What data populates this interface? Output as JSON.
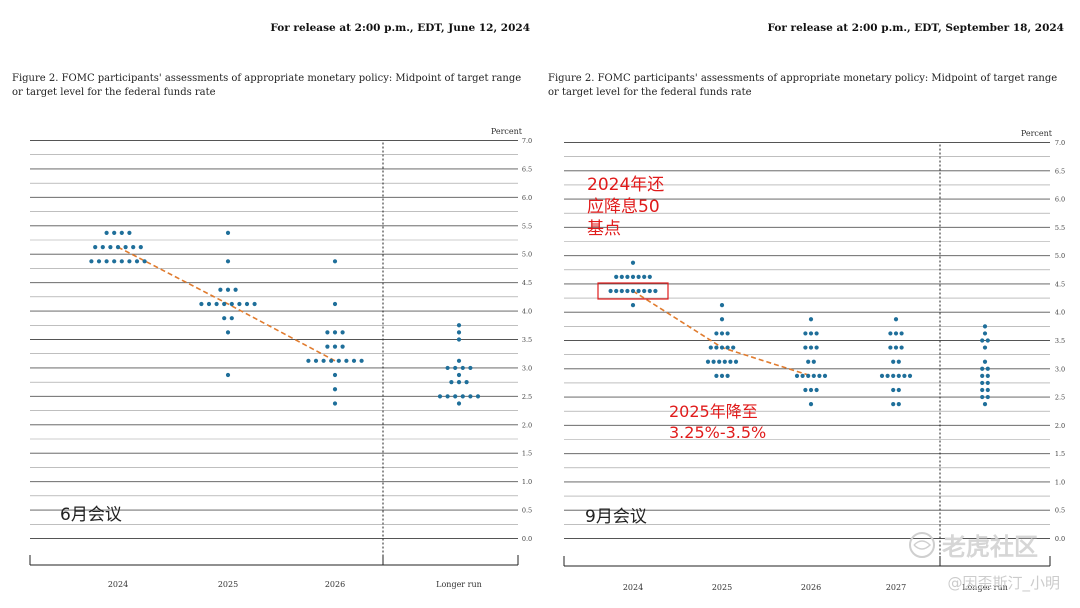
{
  "watermark": {
    "brand": "老虎社区",
    "author": "@因歪斯汀_小明"
  },
  "chart_data": [
    {
      "type": "scatter",
      "release": "For release at 2:00 p.m., EDT, June 12, 2024",
      "title": "Figure 2.  FOMC participants' assessments of appropriate monetary policy: Midpoint of target range",
      "title_line2": "or target level for the federal funds rate",
      "ylabel": "Percent",
      "ylim": [
        0,
        7.0
      ],
      "y_ticks": [
        "0.0",
        "0.5",
        "1.0",
        "1.5",
        "2.0",
        "2.5",
        "3.0",
        "3.5",
        "4.0",
        "4.5",
        "5.0",
        "5.5",
        "6.0",
        "6.5",
        "7.0"
      ],
      "categories": [
        "2024",
        "2025",
        "2026",
        "Longer run"
      ],
      "dots": [
        {
          "category": "2024",
          "rows": [
            {
              "y": 5.375,
              "count": 4
            },
            {
              "y": 5.125,
              "count": 7
            },
            {
              "y": 4.875,
              "count": 8
            }
          ]
        },
        {
          "category": "2025",
          "rows": [
            {
              "y": 5.375,
              "count": 1
            },
            {
              "y": 4.875,
              "count": 1
            },
            {
              "y": 4.375,
              "count": 3
            },
            {
              "y": 4.125,
              "count": 8
            },
            {
              "y": 3.875,
              "count": 2
            },
            {
              "y": 3.625,
              "count": 1
            },
            {
              "y": 2.875,
              "count": 1
            }
          ]
        },
        {
          "category": "2026",
          "rows": [
            {
              "y": 4.875,
              "count": 1
            },
            {
              "y": 4.125,
              "count": 1
            },
            {
              "y": 3.625,
              "count": 3
            },
            {
              "y": 3.375,
              "count": 3
            },
            {
              "y": 3.125,
              "count": 8
            },
            {
              "y": 2.875,
              "count": 1
            },
            {
              "y": 2.625,
              "count": 1
            },
            {
              "y": 2.375,
              "count": 1
            }
          ]
        },
        {
          "category": "Longer run",
          "rows": [
            {
              "y": 3.75,
              "count": 1
            },
            {
              "y": 3.625,
              "count": 1
            },
            {
              "y": 3.5,
              "count": 1
            },
            {
              "y": 3.125,
              "count": 1
            },
            {
              "y": 3.0,
              "count": 4
            },
            {
              "y": 2.875,
              "count": 1
            },
            {
              "y": 2.75,
              "count": 3
            },
            {
              "y": 2.5,
              "count": 6
            },
            {
              "y": 2.375,
              "count": 1
            }
          ]
        }
      ],
      "median_line": [
        {
          "category": "2024",
          "y": 5.125
        },
        {
          "category": "2025",
          "y": 4.125
        },
        {
          "category": "2026",
          "y": 3.125
        }
      ],
      "annotations": [
        {
          "text": "6月会议",
          "anchor": "bottom-left"
        }
      ]
    },
    {
      "type": "scatter",
      "release": "For release at 2:00 p.m., EDT, September 18, 2024",
      "title": "Figure 2.  FOMC participants' assessments of appropriate monetary policy: Midpoint of target range",
      "title_line2": "or target level for the federal funds rate",
      "ylabel": "Percent",
      "ylim": [
        0,
        7.0
      ],
      "y_ticks": [
        "0.0",
        "0.5",
        "1.0",
        "1.5",
        "2.0",
        "2.5",
        "3.0",
        "3.5",
        "4.0",
        "4.5",
        "5.0",
        "5.5",
        "6.0",
        "6.5",
        "7.0"
      ],
      "categories": [
        "2024",
        "2025",
        "2026",
        "2027",
        "Longer run"
      ],
      "dots": [
        {
          "category": "2024",
          "rows": [
            {
              "y": 4.875,
              "count": 1
            },
            {
              "y": 4.625,
              "count": 7
            },
            {
              "y": 4.375,
              "count": 9
            },
            {
              "y": 4.125,
              "count": 1
            }
          ]
        },
        {
          "category": "2025",
          "rows": [
            {
              "y": 4.125,
              "count": 1
            },
            {
              "y": 3.875,
              "count": 1
            },
            {
              "y": 3.625,
              "count": 3
            },
            {
              "y": 3.375,
              "count": 5
            },
            {
              "y": 3.125,
              "count": 6
            },
            {
              "y": 2.875,
              "count": 3
            }
          ]
        },
        {
          "category": "2026",
          "rows": [
            {
              "y": 3.875,
              "count": 1
            },
            {
              "y": 3.625,
              "count": 3
            },
            {
              "y": 3.375,
              "count": 3
            },
            {
              "y": 3.125,
              "count": 2
            },
            {
              "y": 2.875,
              "count": 6
            },
            {
              "y": 2.625,
              "count": 3
            },
            {
              "y": 2.375,
              "count": 1
            }
          ]
        },
        {
          "category": "2027",
          "rows": [
            {
              "y": 3.875,
              "count": 1
            },
            {
              "y": 3.625,
              "count": 3
            },
            {
              "y": 3.375,
              "count": 3
            },
            {
              "y": 3.125,
              "count": 2
            },
            {
              "y": 2.875,
              "count": 6
            },
            {
              "y": 2.625,
              "count": 2
            },
            {
              "y": 2.375,
              "count": 2
            }
          ]
        },
        {
          "category": "Longer run",
          "rows": [
            {
              "y": 3.75,
              "count": 1
            },
            {
              "y": 3.625,
              "count": 1
            },
            {
              "y": 3.5,
              "count": 2
            },
            {
              "y": 3.375,
              "count": 1
            },
            {
              "y": 3.125,
              "count": 1
            },
            {
              "y": 3.0,
              "count": 2
            },
            {
              "y": 2.875,
              "count": 2
            },
            {
              "y": 2.75,
              "count": 2
            },
            {
              "y": 2.625,
              "count": 2
            },
            {
              "y": 2.5,
              "count": 2
            },
            {
              "y": 2.375,
              "count": 1
            }
          ]
        }
      ],
      "median_line": [
        {
          "category": "2024",
          "y": 4.375
        },
        {
          "category": "2025",
          "y": 3.375
        },
        {
          "category": "2026",
          "y": 2.875
        }
      ],
      "highlight": {
        "category": "2024",
        "y": 4.375
      },
      "annotations": [
        {
          "text": "2024年还\n应降息50\n基点",
          "anchor": "top-left"
        },
        {
          "text": "2025年降至\n3.25%-3.5%",
          "anchor": "middle"
        },
        {
          "text": "9月会议",
          "anchor": "bottom-left"
        }
      ]
    }
  ]
}
